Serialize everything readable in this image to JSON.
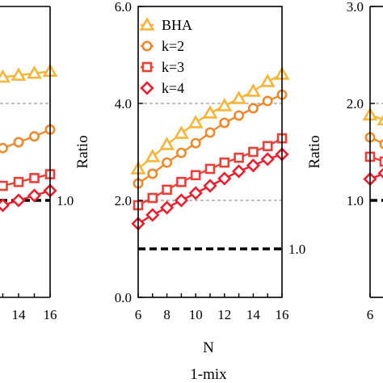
{
  "chart_data": [
    {
      "panel": "left",
      "type": "line",
      "x_ticks": [
        "14",
        "16"
      ],
      "y_reference": 1.0,
      "y_reference_label": "1.0",
      "series": [
        {
          "name": "BHA",
          "x": [
            6,
            7,
            8,
            9,
            10,
            11,
            12,
            13,
            14,
            15,
            16
          ],
          "values": [
            2.05,
            2.09,
            2.12,
            2.16,
            2.19,
            2.22,
            2.24,
            2.27,
            2.29,
            2.31,
            2.33
          ]
        },
        {
          "name": "k=2",
          "x": [
            6,
            7,
            8,
            9,
            10,
            11,
            12,
            13,
            14,
            15,
            16
          ],
          "values": [
            1.1,
            1.18,
            1.24,
            1.3,
            1.36,
            1.42,
            1.48,
            1.54,
            1.6,
            1.66,
            1.73
          ]
        },
        {
          "name": "k=3",
          "x": [
            6,
            7,
            8,
            9,
            10,
            11,
            12,
            13,
            14,
            15,
            16
          ],
          "values": [
            0.8,
            0.87,
            0.92,
            0.97,
            1.02,
            1.07,
            1.11,
            1.15,
            1.19,
            1.23,
            1.27
          ]
        },
        {
          "name": "k=4",
          "x": [
            6,
            7,
            8,
            9,
            10,
            11,
            12,
            13,
            14,
            15,
            16
          ],
          "values": [
            0.55,
            0.63,
            0.69,
            0.75,
            0.8,
            0.85,
            0.9,
            0.95,
            1.0,
            1.05,
            1.1
          ]
        }
      ]
    },
    {
      "panel": "middle",
      "type": "line",
      "xlabel": "N",
      "ylabel": "Ratio",
      "caption": "1-mix",
      "x_ticks": [
        "6",
        "8",
        "10",
        "12",
        "14",
        "16"
      ],
      "y_ticks": [
        "0.0",
        "2.0",
        "4.0",
        "6.0"
      ],
      "xlim": [
        6,
        16
      ],
      "ylim": [
        0,
        6
      ],
      "y_reference": 1.0,
      "y_reference_label": "1.0",
      "legend_position": "top-left",
      "series": [
        {
          "name": "BHA",
          "x": [
            6,
            7,
            8,
            9,
            10,
            11,
            12,
            13,
            14,
            15,
            16
          ],
          "values": [
            2.65,
            2.9,
            3.15,
            3.38,
            3.6,
            3.8,
            3.95,
            4.1,
            4.25,
            4.45,
            4.6
          ]
        },
        {
          "name": "k=2",
          "x": [
            6,
            7,
            8,
            9,
            10,
            11,
            12,
            13,
            14,
            15,
            16
          ],
          "values": [
            2.35,
            2.55,
            2.78,
            2.98,
            3.18,
            3.4,
            3.6,
            3.75,
            3.9,
            4.05,
            4.18
          ]
        },
        {
          "name": "k=3",
          "x": [
            6,
            7,
            8,
            9,
            10,
            11,
            12,
            13,
            14,
            15,
            16
          ],
          "values": [
            1.9,
            2.05,
            2.22,
            2.38,
            2.52,
            2.65,
            2.78,
            2.88,
            3.0,
            3.12,
            3.28
          ]
        },
        {
          "name": "k=4",
          "x": [
            6,
            7,
            8,
            9,
            10,
            11,
            12,
            13,
            14,
            15,
            16
          ],
          "values": [
            1.52,
            1.7,
            1.85,
            2.0,
            2.15,
            2.3,
            2.45,
            2.6,
            2.72,
            2.85,
            2.95
          ]
        }
      ]
    },
    {
      "panel": "right",
      "type": "line",
      "ylabel": "Ratio",
      "x_ticks": [
        "6"
      ],
      "y_ticks": [
        "1.0",
        "2.0",
        "3.0"
      ],
      "ylim": [
        0,
        3
      ],
      "y_reference": 1.0,
      "series": [
        {
          "name": "BHA",
          "x": [
            6,
            7,
            8
          ],
          "values": [
            1.88,
            1.83,
            1.9
          ]
        },
        {
          "name": "k=2",
          "x": [
            6,
            7,
            8
          ],
          "values": [
            1.65,
            1.58,
            1.66
          ]
        },
        {
          "name": "k=3",
          "x": [
            6,
            7,
            8
          ],
          "values": [
            1.45,
            1.4,
            1.47
          ]
        },
        {
          "name": "k=4",
          "x": [
            6,
            7,
            8
          ],
          "values": [
            1.22,
            1.28,
            1.35
          ]
        }
      ]
    }
  ],
  "series_styles": {
    "BHA": {
      "color": "#F8B53A",
      "marker": "triangle-open"
    },
    "k=2": {
      "color": "#EE8A2E",
      "marker": "circle-open"
    },
    "k=3": {
      "color": "#E8413A",
      "marker": "square-open"
    },
    "k=4": {
      "color": "#E8202F",
      "marker": "diamond-open"
    }
  },
  "reference_line_color": "#000000",
  "grid_line_color": "#9a9a9a"
}
